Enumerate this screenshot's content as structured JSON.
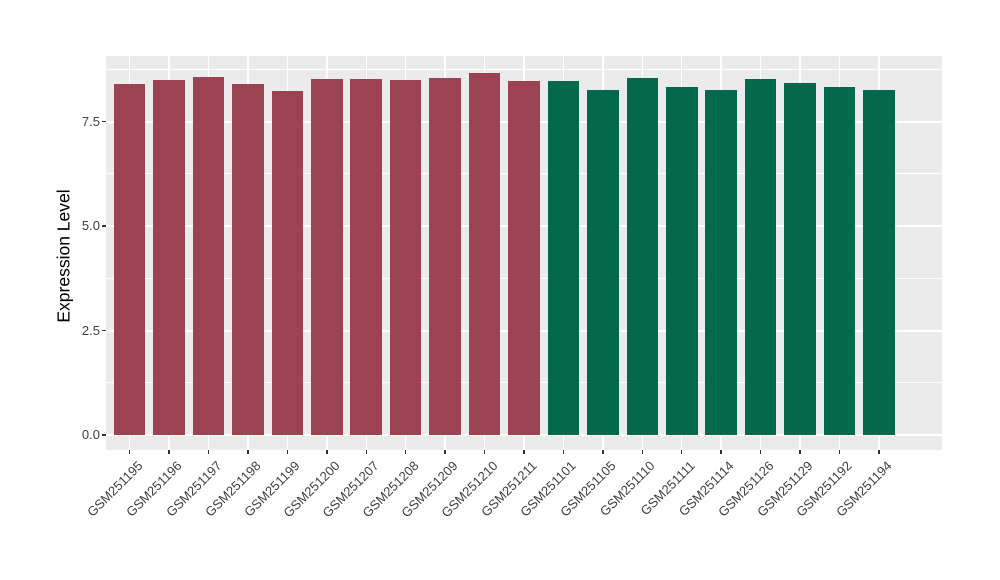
{
  "figure": {
    "background_color": "#ffffff",
    "panel_color": "#ebebeb",
    "grid_color": "#ffffff",
    "tick_mark_color": "#333333",
    "axis_text_color": "#404040",
    "axis_title_color": "#000000"
  },
  "chart_data": {
    "type": "bar",
    "title": "",
    "xlabel": "",
    "ylabel": "Expression Level",
    "ylim": [
      0,
      9.07
    ],
    "yticks": [
      {
        "value": 0,
        "label": "0.0"
      },
      {
        "value": 2.5,
        "label": "2.5"
      },
      {
        "value": 5,
        "label": "5.0"
      },
      {
        "value": 7.5,
        "label": "7.5"
      }
    ],
    "minor_yticks": [
      1.25,
      3.75,
      6.25,
      8.75
    ],
    "grid": "on",
    "legend": "none",
    "x_tick_angle_deg": 45,
    "groups": [
      {
        "name": "red-group",
        "color": "#9c4353"
      },
      {
        "name": "green-group",
        "color": "#04684a"
      }
    ],
    "bars": [
      {
        "label": "GSM251195",
        "value": 8.4,
        "group": 0
      },
      {
        "label": "GSM251196",
        "value": 8.5,
        "group": 0
      },
      {
        "label": "GSM251197",
        "value": 8.56,
        "group": 0
      },
      {
        "label": "GSM251198",
        "value": 8.39,
        "group": 0
      },
      {
        "label": "GSM251199",
        "value": 8.24,
        "group": 0
      },
      {
        "label": "GSM251200",
        "value": 8.52,
        "group": 0
      },
      {
        "label": "GSM251207",
        "value": 8.51,
        "group": 0
      },
      {
        "label": "GSM251208",
        "value": 8.5,
        "group": 0
      },
      {
        "label": "GSM251209",
        "value": 8.55,
        "group": 0
      },
      {
        "label": "GSM251210",
        "value": 8.67,
        "group": 0
      },
      {
        "label": "GSM251211",
        "value": 8.47,
        "group": 0
      },
      {
        "label": "GSM251101",
        "value": 8.47,
        "group": 1
      },
      {
        "label": "GSM251105",
        "value": 8.26,
        "group": 1
      },
      {
        "label": "GSM251110",
        "value": 8.55,
        "group": 1
      },
      {
        "label": "GSM251111",
        "value": 8.32,
        "group": 1
      },
      {
        "label": "GSM251114",
        "value": 8.25,
        "group": 1
      },
      {
        "label": "GSM251126",
        "value": 8.53,
        "group": 1
      },
      {
        "label": "GSM251129",
        "value": 8.42,
        "group": 1
      },
      {
        "label": "GSM251192",
        "value": 8.32,
        "group": 1
      },
      {
        "label": "GSM251194",
        "value": 8.25,
        "group": 1
      }
    ]
  }
}
